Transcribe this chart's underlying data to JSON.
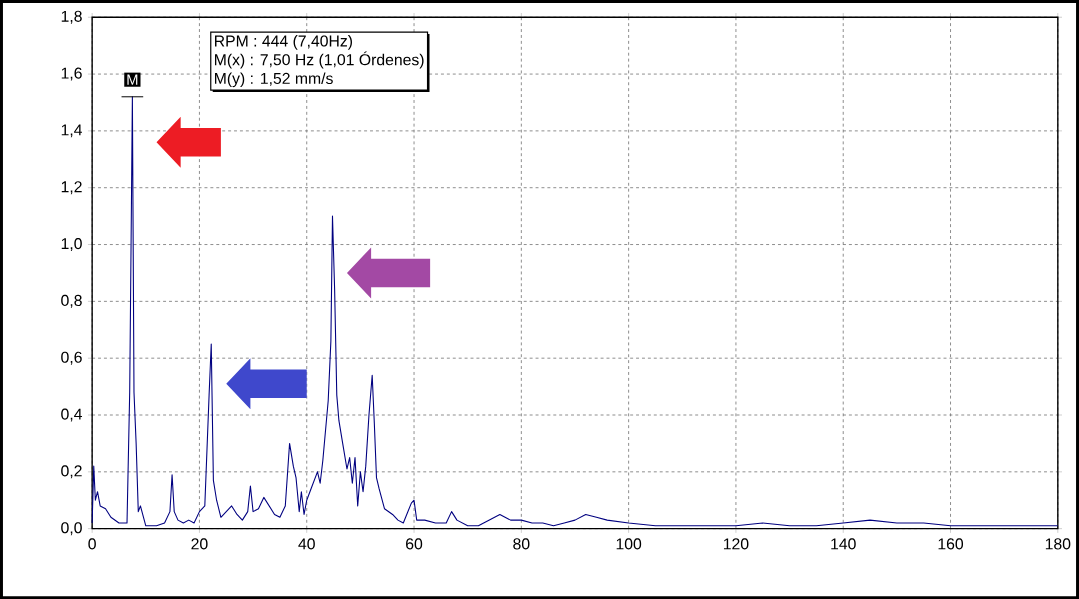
{
  "chart_data": {
    "type": "line",
    "x": [
      0,
      0.3,
      0.6,
      1,
      1.5,
      2.5,
      3.5,
      5,
      6.5,
      7.0,
      7.3,
      7.5,
      7.8,
      8.2,
      8.6,
      9,
      10,
      12,
      13.5,
      14.5,
      14.9,
      15.3,
      16,
      17,
      18,
      19,
      20,
      21,
      21.8,
      22.2,
      22.6,
      23.2,
      24,
      25,
      26,
      27,
      28,
      29,
      29.5,
      30,
      31,
      32,
      33,
      34,
      35,
      36,
      36.8,
      37.5,
      38,
      38.6,
      39,
      39.5,
      40,
      41,
      42,
      42.5,
      43,
      44,
      44.5,
      44.8,
      45.2,
      45.6,
      46,
      46.7,
      47.5,
      48,
      48.5,
      49,
      49.5,
      50,
      50.5,
      51,
      51.6,
      52.2,
      52.6,
      53,
      53.5,
      54.5,
      56,
      57,
      58,
      59.5,
      60,
      60.5,
      62,
      64,
      66,
      67,
      68,
      70,
      72,
      74,
      76,
      78,
      80,
      82,
      84,
      86,
      88,
      90,
      92,
      94,
      96,
      100,
      105,
      110,
      120,
      125,
      130,
      135,
      140,
      145,
      150,
      155,
      160,
      165,
      170,
      175,
      180
    ],
    "values": [
      0.02,
      0.22,
      0.1,
      0.13,
      0.08,
      0.07,
      0.04,
      0.02,
      0.02,
      0.48,
      1.09,
      1.52,
      0.48,
      0.3,
      0.06,
      0.08,
      0.01,
      0.01,
      0.02,
      0.06,
      0.19,
      0.06,
      0.03,
      0.02,
      0.03,
      0.02,
      0.06,
      0.08,
      0.47,
      0.65,
      0.17,
      0.1,
      0.04,
      0.06,
      0.08,
      0.05,
      0.03,
      0.06,
      0.15,
      0.06,
      0.07,
      0.11,
      0.08,
      0.05,
      0.04,
      0.08,
      0.3,
      0.22,
      0.18,
      0.06,
      0.13,
      0.05,
      0.1,
      0.15,
      0.2,
      0.16,
      0.24,
      0.45,
      0.66,
      1.1,
      0.84,
      0.47,
      0.38,
      0.3,
      0.21,
      0.25,
      0.16,
      0.25,
      0.08,
      0.2,
      0.13,
      0.22,
      0.4,
      0.54,
      0.37,
      0.18,
      0.14,
      0.07,
      0.05,
      0.03,
      0.02,
      0.09,
      0.1,
      0.03,
      0.03,
      0.02,
      0.02,
      0.06,
      0.03,
      0.01,
      0.01,
      0.03,
      0.05,
      0.03,
      0.03,
      0.02,
      0.02,
      0.01,
      0.02,
      0.03,
      0.05,
      0.04,
      0.03,
      0.02,
      0.01,
      0.01,
      0.01,
      0.02,
      0.01,
      0.01,
      0.02,
      0.03,
      0.02,
      0.02,
      0.01,
      0.01,
      0.01,
      0.01,
      0.01
    ],
    "color": "#000080",
    "xlim": [
      0,
      180
    ],
    "ylim": [
      0,
      1.8
    ],
    "xticks": [
      0,
      20,
      40,
      60,
      80,
      100,
      120,
      140,
      160,
      180
    ],
    "yticks": [
      {
        "value": 0,
        "label": "0,0"
      },
      {
        "value": 0.2,
        "label": "0,2"
      },
      {
        "value": 0.4,
        "label": "0,4"
      },
      {
        "value": 0.6,
        "label": "0,6"
      },
      {
        "value": 0.8,
        "label": "0,8"
      },
      {
        "value": 1.0,
        "label": "1,0"
      },
      {
        "value": 1.2,
        "label": "1,2"
      },
      {
        "value": 1.4,
        "label": "1,4"
      },
      {
        "value": 1.6,
        "label": "1,6"
      },
      {
        "value": 1.8,
        "label": "1,8"
      }
    ],
    "grid": true,
    "annotations": [
      {
        "text": "M",
        "x": 7.5,
        "y": 1.52
      },
      "RPM : 444 (7,40Hz)",
      "M(x) : 7,50 Hz (1,01 Órdenes)",
      "M(y) : 1,52 mm/s"
    ]
  }
}
